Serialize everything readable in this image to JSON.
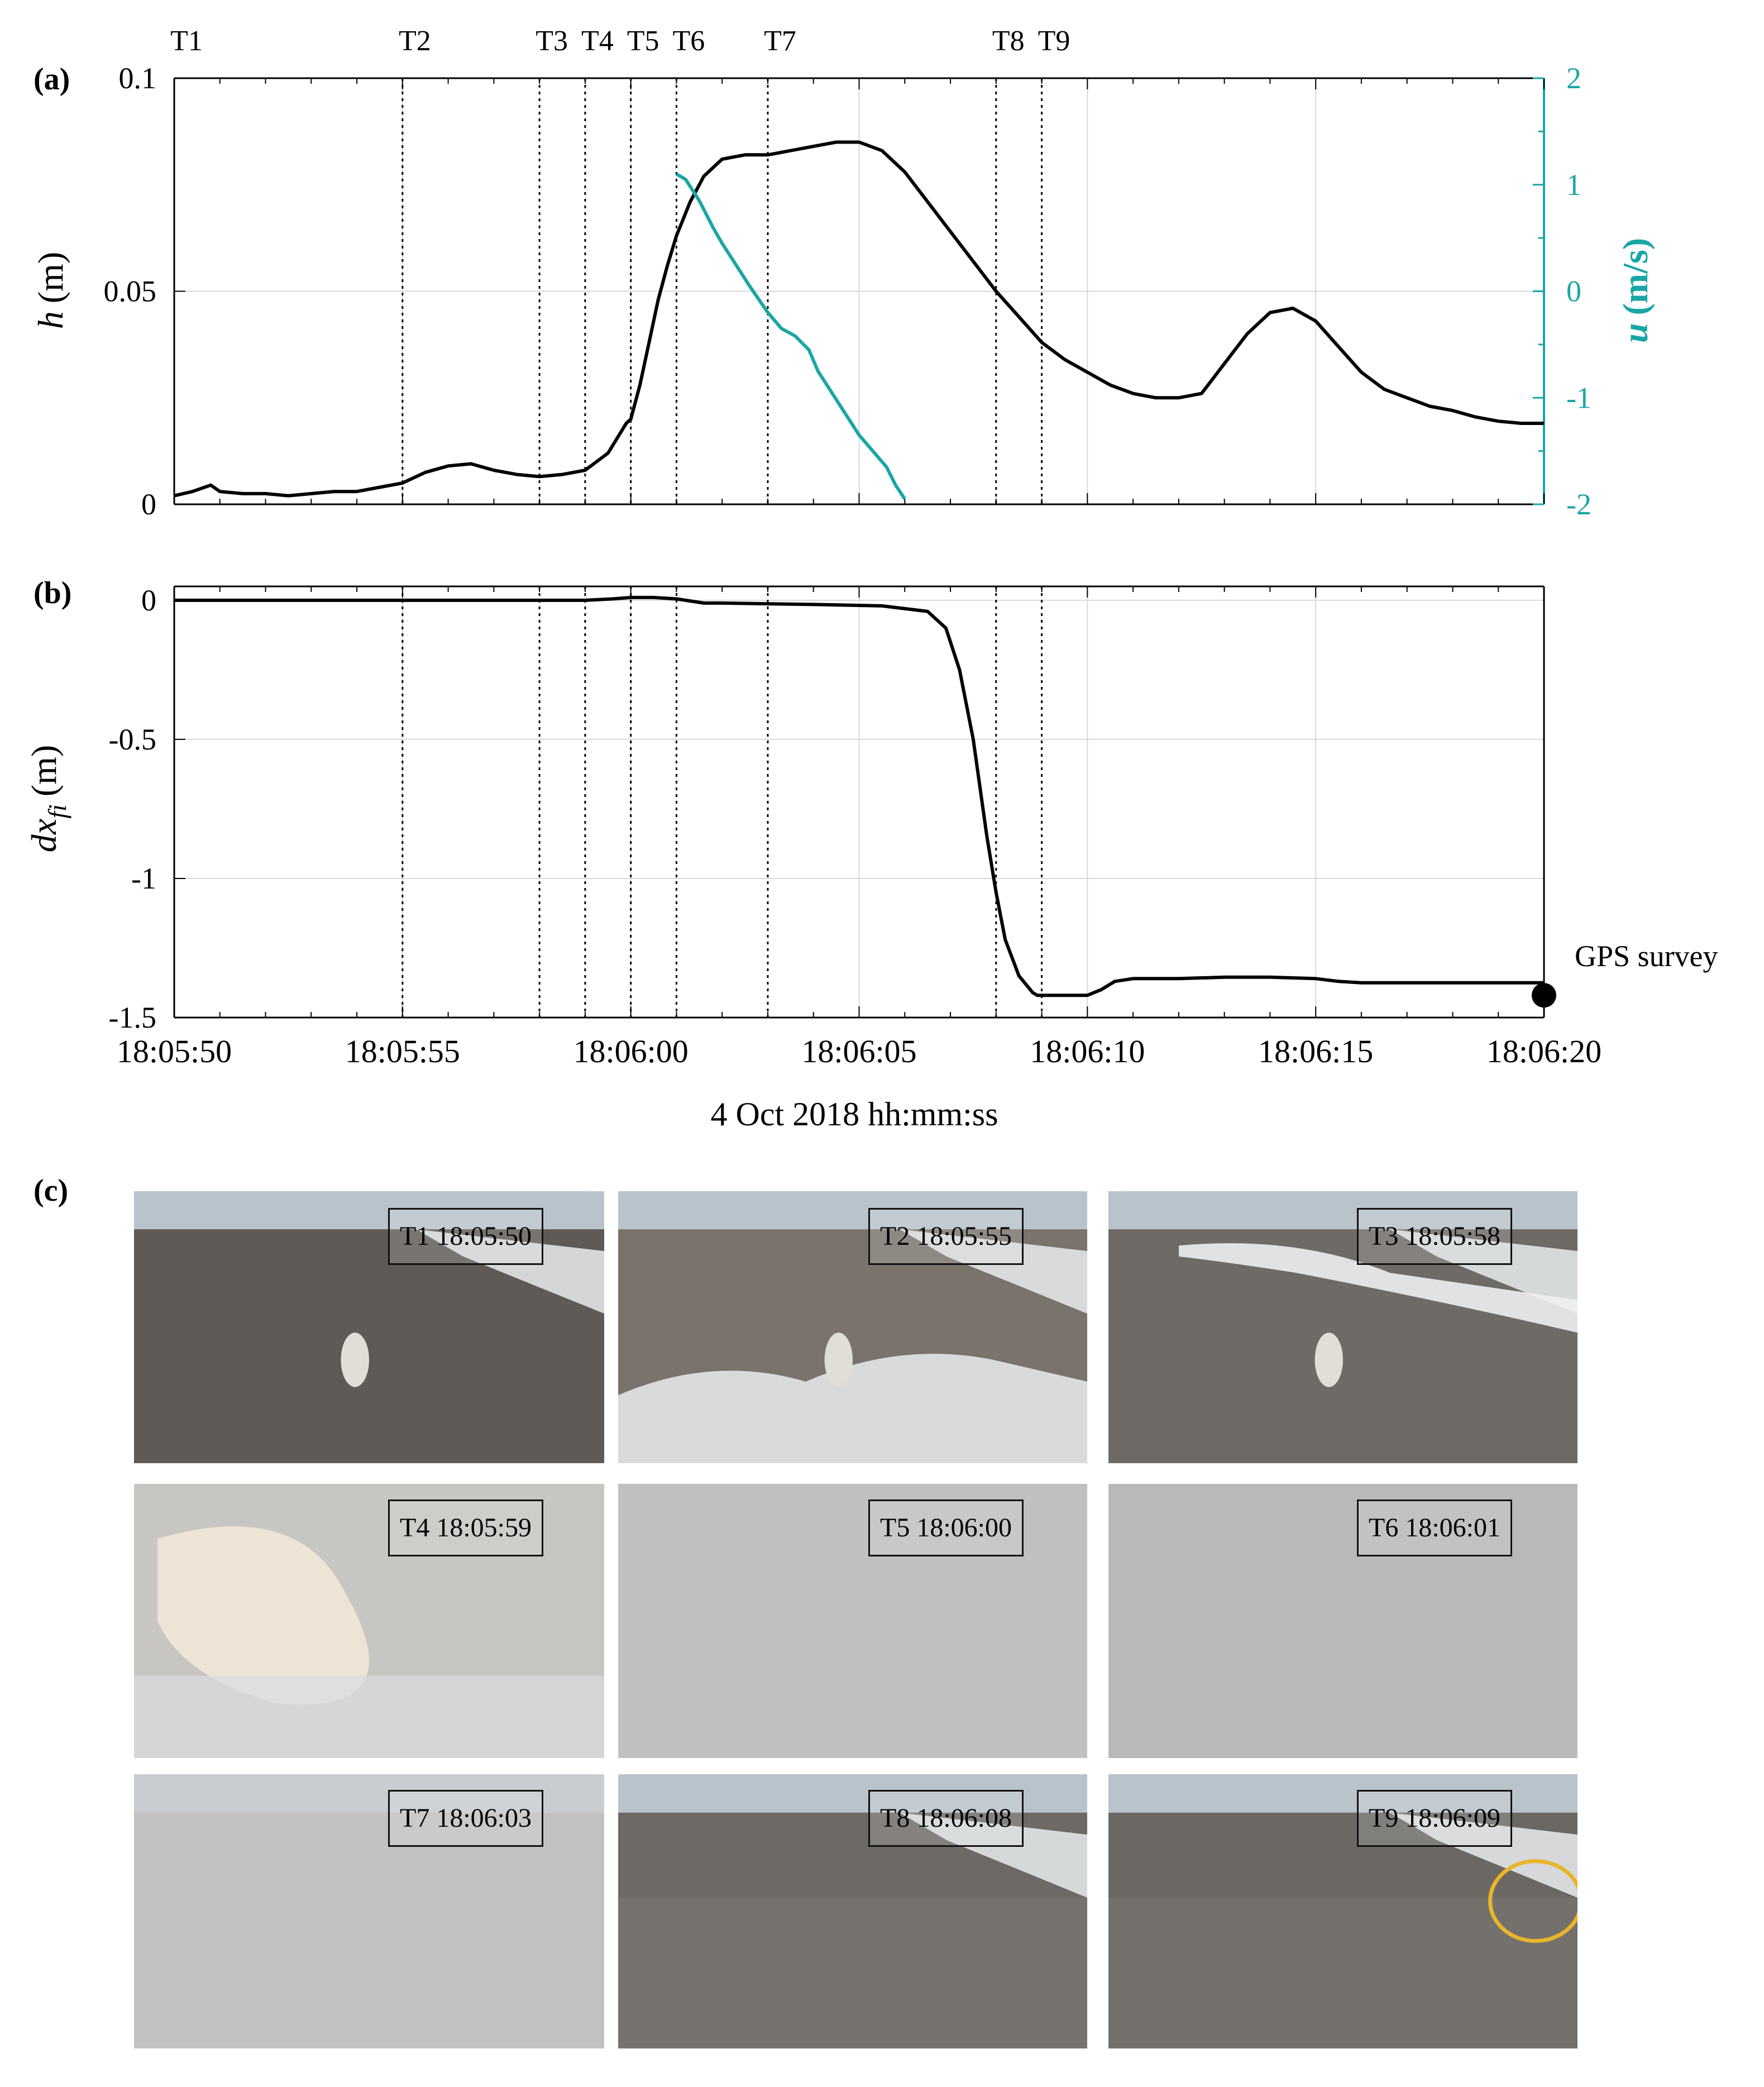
{
  "figure": {
    "panel_labels": {
      "a": "(a)",
      "b": "(b)",
      "c": "(c)"
    },
    "x_axis_title": "4 Oct 2018 hh:mm:ss",
    "annotation_gps": "GPS survey",
    "colors": {
      "h_line": "#000000",
      "u_line": "#1aa6a6",
      "grid": "#d9d9d9",
      "circle": "#e8b52a"
    }
  },
  "chart_data": [
    {
      "type": "line",
      "panel": "(a)",
      "x_unit": "seconds since 18:05:50",
      "xlim": [
        0,
        30
      ],
      "x_ticks": [
        0,
        5,
        10,
        15,
        20,
        25,
        30
      ],
      "event_markers": [
        {
          "label": "T1",
          "t": 0
        },
        {
          "label": "T2",
          "t": 5
        },
        {
          "label": "T3",
          "t": 8
        },
        {
          "label": "T4",
          "t": 9
        },
        {
          "label": "T5",
          "t": 10
        },
        {
          "label": "T6",
          "t": 11
        },
        {
          "label": "T7",
          "t": 13
        },
        {
          "label": "T8",
          "t": 18
        },
        {
          "label": "T9",
          "t": 19
        }
      ],
      "left_axis": {
        "label_var": "h",
        "label_unit": "(m)",
        "ylim": [
          0,
          0.1
        ],
        "ticks": [
          0,
          0.05,
          0.1
        ],
        "tick_labels": [
          "0",
          "0.05",
          "0.1"
        ]
      },
      "right_axis": {
        "label_var": "u",
        "label_unit": "(m/s)",
        "ylim": [
          -2,
          2
        ],
        "ticks": [
          -2,
          -1,
          0,
          1,
          2
        ],
        "tick_labels": [
          "-2",
          "-1",
          "0",
          "1",
          "2"
        ]
      },
      "series": [
        {
          "name": "h",
          "axis": "left",
          "x": [
            0,
            0.4,
            0.8,
            1,
            1.5,
            2,
            2.5,
            3,
            3.5,
            4,
            4.5,
            5,
            5.5,
            6,
            6.5,
            7,
            7.5,
            8,
            8.5,
            9,
            9.5,
            9.9,
            10,
            10.2,
            10.4,
            10.6,
            10.8,
            11,
            11.3,
            11.6,
            12,
            12.5,
            13,
            13.5,
            14,
            14.5,
            15,
            15.5,
            16,
            16.5,
            17,
            17.5,
            18,
            18.5,
            19,
            19.5,
            20,
            20.5,
            21,
            21.5,
            22,
            22.5,
            23,
            23.5,
            24,
            24.5,
            25,
            25.5,
            26,
            26.5,
            27,
            27.5,
            28,
            28.5,
            29,
            29.5,
            30
          ],
          "values": [
            0.002,
            0.003,
            0.0045,
            0.003,
            0.0025,
            0.0025,
            0.002,
            0.0025,
            0.003,
            0.003,
            0.004,
            0.005,
            0.0075,
            0.009,
            0.0095,
            0.008,
            0.007,
            0.0065,
            0.007,
            0.008,
            0.012,
            0.019,
            0.02,
            0.028,
            0.038,
            0.048,
            0.056,
            0.063,
            0.071,
            0.077,
            0.081,
            0.082,
            0.082,
            0.083,
            0.084,
            0.085,
            0.085,
            0.083,
            0.078,
            0.071,
            0.064,
            0.057,
            0.05,
            0.044,
            0.038,
            0.034,
            0.031,
            0.028,
            0.026,
            0.025,
            0.025,
            0.026,
            0.033,
            0.04,
            0.045,
            0.046,
            0.043,
            0.037,
            0.031,
            0.027,
            0.025,
            0.023,
            0.022,
            0.0205,
            0.0195,
            0.019,
            0.019
          ]
        },
        {
          "name": "u",
          "axis": "right",
          "x": [
            11,
            11.2,
            11.5,
            11.8,
            12,
            12.3,
            12.6,
            13,
            13.3,
            13.6,
            13.9,
            14.1,
            14.4,
            14.7,
            15,
            15.3,
            15.6,
            15.8,
            16
          ],
          "values": [
            1.1,
            1.05,
            0.85,
            0.6,
            0.45,
            0.25,
            0.05,
            -0.2,
            -0.35,
            -0.42,
            -0.55,
            -0.75,
            -0.95,
            -1.15,
            -1.35,
            -1.5,
            -1.65,
            -1.82,
            -1.95
          ]
        }
      ]
    },
    {
      "type": "line",
      "panel": "(b)",
      "x_unit": "seconds since 18:05:50",
      "xlim": [
        0,
        30
      ],
      "x_ticks": [
        0,
        5,
        10,
        15,
        20,
        25,
        30
      ],
      "x_tick_labels": [
        "18:05:50",
        "18:05:55",
        "18:06:00",
        "18:06:05",
        "18:06:10",
        "18:06:15",
        "18:06:20"
      ],
      "xlabel": "4 Oct 2018 hh:mm:ss",
      "ylabel": {
        "base": "dx",
        "subscript": "fi",
        "unit": "(m)"
      },
      "ylim": [
        -1.5,
        0.05
      ],
      "y_ticks": [
        -1.5,
        -1,
        -0.5,
        0
      ],
      "y_tick_labels": [
        "-1.5",
        "-1",
        "-0.5",
        "0"
      ],
      "series": [
        {
          "name": "dx_fi",
          "x": [
            0,
            5,
            9,
            9.6,
            10,
            10.5,
            11,
            11.6,
            12,
            14,
            15.5,
            16.5,
            16.9,
            17.2,
            17.5,
            17.8,
            18,
            18.2,
            18.5,
            18.8,
            18.9,
            19,
            19.5,
            20,
            20.3,
            20.6,
            21,
            22,
            23,
            24,
            25,
            25.5,
            26,
            27,
            28,
            29,
            30
          ],
          "values": [
            0,
            0,
            0,
            0.005,
            0.01,
            0.01,
            0.005,
            -0.01,
            -0.01,
            -0.015,
            -0.02,
            -0.04,
            -0.1,
            -0.25,
            -0.5,
            -0.85,
            -1.05,
            -1.22,
            -1.35,
            -1.41,
            -1.42,
            -1.42,
            -1.42,
            -1.42,
            -1.4,
            -1.37,
            -1.36,
            -1.36,
            -1.355,
            -1.355,
            -1.36,
            -1.37,
            -1.375,
            -1.375,
            -1.375,
            -1.375,
            -1.375
          ]
        }
      ],
      "points": [
        {
          "x": 30,
          "y": -1.42,
          "label": "GPS survey"
        }
      ]
    }
  ],
  "photos": [
    {
      "id": "T1",
      "label": "T1 18:05:50"
    },
    {
      "id": "T2",
      "label": "T2 18:05:55"
    },
    {
      "id": "T3",
      "label": "T3 18:05:58"
    },
    {
      "id": "T4",
      "label": "T4 18:05:59"
    },
    {
      "id": "T5",
      "label": "T5 18:06:00"
    },
    {
      "id": "T6",
      "label": "T6 18:06:01"
    },
    {
      "id": "T7",
      "label": "T7 18:06:03"
    },
    {
      "id": "T8",
      "label": "T8 18:06:08"
    },
    {
      "id": "T9",
      "label": "T9 18:06:09"
    }
  ]
}
